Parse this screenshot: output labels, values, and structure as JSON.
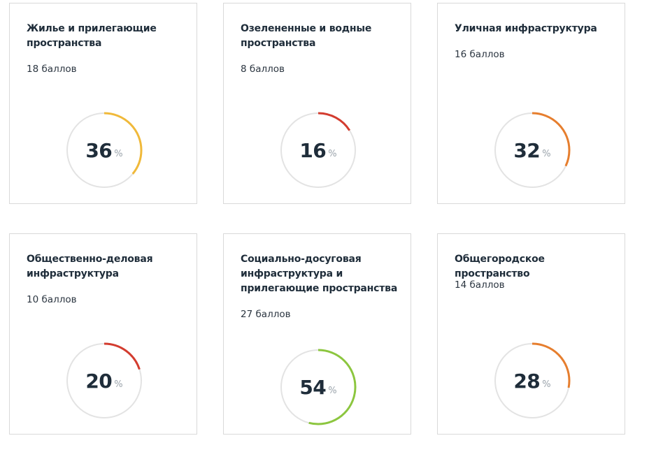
{
  "cards": [
    {
      "title": "Жилье и прилегающие пространства",
      "score": "18 баллов",
      "percent_value": 36,
      "percent_text": "36",
      "percent_unit": "%",
      "color": "#f0b93a"
    },
    {
      "title": "Озелененные и водные пространства",
      "score": "8 баллов",
      "percent_value": 16,
      "percent_text": "16",
      "percent_unit": "%",
      "color": "#d33c2f"
    },
    {
      "title": "Уличная инфраструктура",
      "score": "16 баллов",
      "percent_value": 32,
      "percent_text": "32",
      "percent_unit": "%",
      "color": "#e67e2e"
    },
    {
      "title": "Общественно-деловая инфраструктура",
      "score": "10 баллов",
      "percent_value": 20,
      "percent_text": "20",
      "percent_unit": "%",
      "color": "#d33c2f"
    },
    {
      "title": "Социально-досуговая инфраструктура и прилегающие пространства",
      "score": "27 баллов",
      "percent_value": 54,
      "percent_text": "54",
      "percent_unit": "%",
      "color": "#8cc63f"
    },
    {
      "title": "Общегородское пространство",
      "score": "14 баллов",
      "percent_value": 28,
      "percent_text": "28",
      "percent_unit": "%",
      "color": "#e67e2e"
    }
  ],
  "track_color": "#e3e3e3"
}
